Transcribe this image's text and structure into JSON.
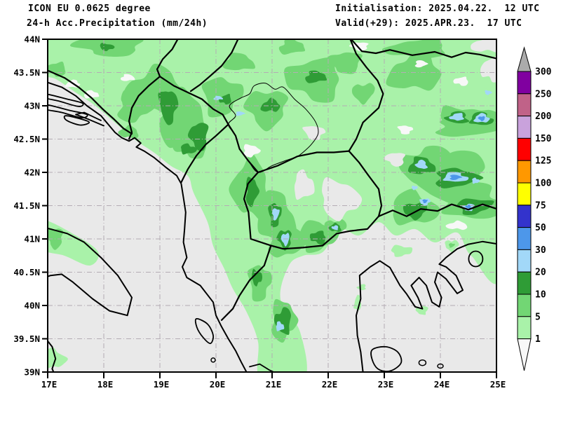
{
  "header": {
    "model_line": "ICON EU 0.0625 degree",
    "parameter_line": "24-h Acc.Precipitation (mm/24h)",
    "initialisation": "Initialisation: 2025.04.22.  12 UTC",
    "valid": "Valid(+29): 2025.APR.23.  17 UTC"
  },
  "axes": {
    "lat_ticks": [
      {
        "label": "44N",
        "value": 44
      },
      {
        "label": "43.5N",
        "value": 43.5
      },
      {
        "label": "43N",
        "value": 43
      },
      {
        "label": "42.5N",
        "value": 42.5
      },
      {
        "label": "42N",
        "value": 42
      },
      {
        "label": "41.5N",
        "value": 41.5
      },
      {
        "label": "41N",
        "value": 41
      },
      {
        "label": "40.5N",
        "value": 40.5
      },
      {
        "label": "40N",
        "value": 40
      },
      {
        "label": "39.5N",
        "value": 39.5
      },
      {
        "label": "39N",
        "value": 39
      }
    ],
    "lon_ticks": [
      {
        "label": "17E",
        "value": 17
      },
      {
        "label": "18E",
        "value": 18
      },
      {
        "label": "19E",
        "value": 19
      },
      {
        "label": "20E",
        "value": 20
      },
      {
        "label": "21E",
        "value": 21
      },
      {
        "label": "22E",
        "value": 22
      },
      {
        "label": "23E",
        "value": 23
      },
      {
        "label": "24E",
        "value": 24
      },
      {
        "label": "25E",
        "value": 25
      }
    ]
  },
  "legend": {
    "tick_labels": [
      "300",
      "250",
      "200",
      "150",
      "125",
      "100",
      "75",
      "50",
      "30",
      "20",
      "10",
      "5",
      "1"
    ],
    "band_colors": [
      "#8000A0",
      "#C06288",
      "#C9A2DC",
      "#FF0000",
      "#FF9800",
      "#FFFF00",
      "#3333CC",
      "#4D97EA",
      "#A2D8F8",
      "#2F9C36",
      "#72D674",
      "#A9F2A9"
    ],
    "overflow_color": "#ABABAB",
    "underflow_color": "#F8F8F8"
  },
  "palette": {
    "sea": "#E9E9E9",
    "precip_1_5": "#A9F2A9",
    "precip_5_10": "#72D674",
    "precip_10_20": "#2F9C36",
    "precip_20_30": "#A2D8F8",
    "precip_30_50": "#4D97EA",
    "precip_trace": "#F8F8F8",
    "grid": "#B4ACB4",
    "outline": "#000000"
  }
}
